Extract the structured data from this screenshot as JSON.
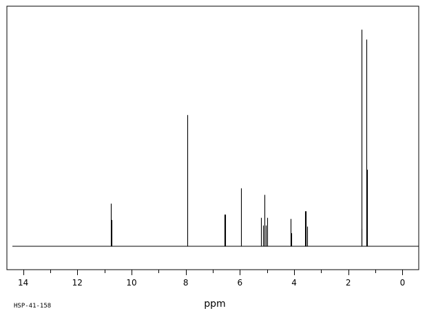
{
  "chart_data": {
    "type": "line",
    "title": "",
    "xlabel": "ppm",
    "ylabel": "",
    "sample_id": "HSP-41-158",
    "xlim": [
      14.6,
      -0.6
    ],
    "x_reversed": true,
    "ylim": [
      0,
      1.0
    ],
    "grid": false,
    "legend": "none",
    "line_color": "#000000",
    "tick_labels": [
      "14",
      "12",
      "10",
      "8",
      "6",
      "4",
      "2",
      "0"
    ],
    "ticks": [
      14,
      12,
      10,
      8,
      6,
      4,
      2,
      0
    ],
    "minor_ticks": [
      13,
      11,
      9,
      7,
      5,
      3,
      1
    ],
    "peaks": [
      {
        "x": 10.76,
        "y": 0.195
      },
      {
        "x": 10.73,
        "y": 0.12
      },
      {
        "x": 7.94,
        "y": 0.6
      },
      {
        "x": 6.57,
        "y": 0.145
      },
      {
        "x": 6.54,
        "y": 0.145
      },
      {
        "x": 5.96,
        "y": 0.265
      },
      {
        "x": 5.22,
        "y": 0.13
      },
      {
        "x": 5.14,
        "y": 0.095
      },
      {
        "x": 5.1,
        "y": 0.235
      },
      {
        "x": 5.05,
        "y": 0.095
      },
      {
        "x": 4.99,
        "y": 0.13
      },
      {
        "x": 4.13,
        "y": 0.125
      },
      {
        "x": 4.1,
        "y": 0.06
      },
      {
        "x": 3.59,
        "y": 0.16
      },
      {
        "x": 3.56,
        "y": 0.16
      },
      {
        "x": 3.53,
        "y": 0.09
      },
      {
        "x": 1.52,
        "y": 0.08
      },
      {
        "x": 1.5,
        "y": 0.99
      },
      {
        "x": 1.32,
        "y": 0.945
      },
      {
        "x": 1.3,
        "y": 0.35
      }
    ]
  }
}
